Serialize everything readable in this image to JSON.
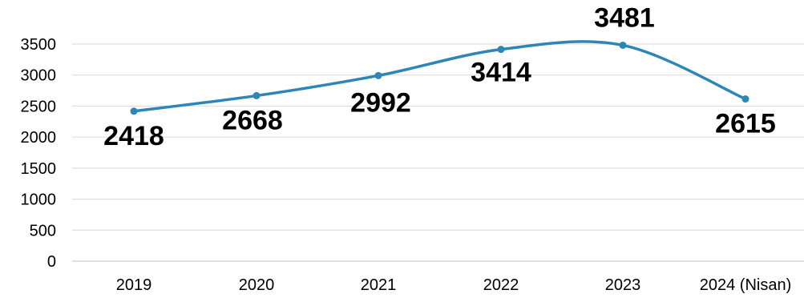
{
  "chart_data": {
    "type": "line",
    "title": "",
    "xlabel": "",
    "ylabel": "",
    "categories": [
      "2019",
      "2020",
      "2021",
      "2022",
      "2023",
      "2024 (Nisan)"
    ],
    "series": [
      {
        "values": [
          2418,
          2668,
          2992,
          3414,
          3481,
          2615
        ],
        "color": "#2e86b8"
      }
    ],
    "ylim": [
      0,
      3500
    ],
    "yticks": [
      "0",
      "500",
      "1000",
      "1500",
      "2000",
      "2500",
      "3000",
      "3500"
    ],
    "data_labels": [
      "2418",
      "2668",
      "2992",
      "3414",
      "3481",
      "2615"
    ],
    "grid": true,
    "smooth": true,
    "legend": "none"
  }
}
